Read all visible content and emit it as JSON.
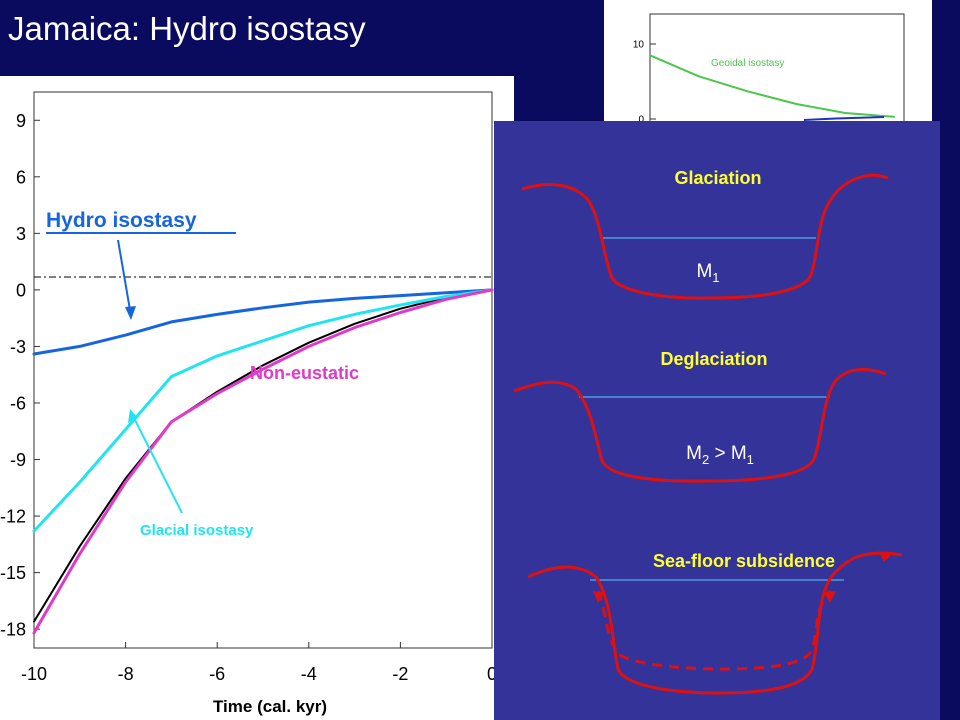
{
  "slide": {
    "title": "Jamaica: Hydro isostasy"
  },
  "chart_data": [
    {
      "type": "line",
      "xlabel": "Time (cal. kyr)",
      "ylabel": "",
      "xlim": [
        -10,
        0
      ],
      "ylim": [
        -19,
        10.5
      ],
      "x_ticks": [
        "-10",
        "-8",
        "-6",
        "-4",
        "-2",
        "0"
      ],
      "y_ticks": [
        "9",
        "6",
        "3",
        "0",
        "-3",
        "-6",
        "-9",
        "-12",
        "-15",
        "-18"
      ],
      "series": [
        {
          "name": "Hydro isostasy",
          "color": "#1565e0",
          "x": [
            -10,
            -9,
            -8,
            -7,
            -6,
            -5,
            -4,
            -3,
            -2,
            -1,
            0
          ],
          "y": [
            -3.4,
            -3.0,
            -2.4,
            -1.7,
            -1.3,
            -0.95,
            -0.65,
            -0.45,
            -0.3,
            -0.15,
            0
          ]
        },
        {
          "name": "Glacial isostasy",
          "color": "#22e4f0",
          "x": [
            -10,
            -9,
            -8,
            -7,
            -6,
            -5,
            -4,
            -3,
            -2,
            -1,
            0
          ],
          "y": [
            -12.8,
            -10.2,
            -7.4,
            -4.6,
            -3.5,
            -2.7,
            -1.9,
            -1.3,
            -0.8,
            -0.35,
            0
          ]
        },
        {
          "name": "Non-eustatic",
          "color": "#e03ac8",
          "x": [
            -10,
            -9,
            -8,
            -7,
            -6,
            -5,
            -4,
            -3,
            -2,
            -1,
            0
          ],
          "y": [
            -18.2,
            -14.0,
            -10.2,
            -7.0,
            -5.5,
            -4.2,
            -3.0,
            -2.0,
            -1.2,
            -0.5,
            0
          ]
        },
        {
          "name": "",
          "color": "#000000",
          "x": [
            -10,
            -9,
            -8,
            -7,
            -6,
            -5,
            -4,
            -3,
            -2,
            -1,
            0
          ],
          "y": [
            -17.6,
            -13.6,
            -10.0,
            -7.0,
            -5.4,
            -4.0,
            -2.8,
            -1.8,
            -1.0,
            -0.4,
            0
          ]
        }
      ],
      "annotations": [
        {
          "text": "Hydro isostasy",
          "color": "#1565e0"
        },
        {
          "text": "Non-eustatic",
          "color": "#e03ac8"
        },
        {
          "text": "Glacial isostasy",
          "color": "#22e4f0"
        }
      ]
    },
    {
      "type": "line",
      "xlim": [
        -10,
        0
      ],
      "ylim": [
        -2,
        14
      ],
      "y_ticks": [
        "10",
        "0"
      ],
      "series": [
        {
          "name": "Geoidal isostasy",
          "color": "#4cc64c",
          "x": [
            -10,
            -8,
            -6,
            -4,
            -2,
            0
          ],
          "y": [
            8.5,
            5.7,
            3.7,
            2.0,
            0.8,
            0.3
          ]
        }
      ]
    }
  ],
  "diagram": {
    "panels": [
      {
        "title": "Glaciation",
        "label_main": "M",
        "label_sub": "1",
        "label_rest": "",
        "label_sub2": ""
      },
      {
        "title": "Deglaciation",
        "label_main": "M",
        "label_sub": "2",
        "label_rest": " > M",
        "label_sub2": "1"
      },
      {
        "title": "Sea-floor subsidence",
        "label_main": "",
        "label_sub": "",
        "label_rest": "",
        "label_sub2": ""
      }
    ],
    "colors": {
      "background": "#33339a",
      "basin": "#dd1111",
      "water_line": "#5ad0ff",
      "title": "#ffff33",
      "label": "#ffffff"
    }
  }
}
